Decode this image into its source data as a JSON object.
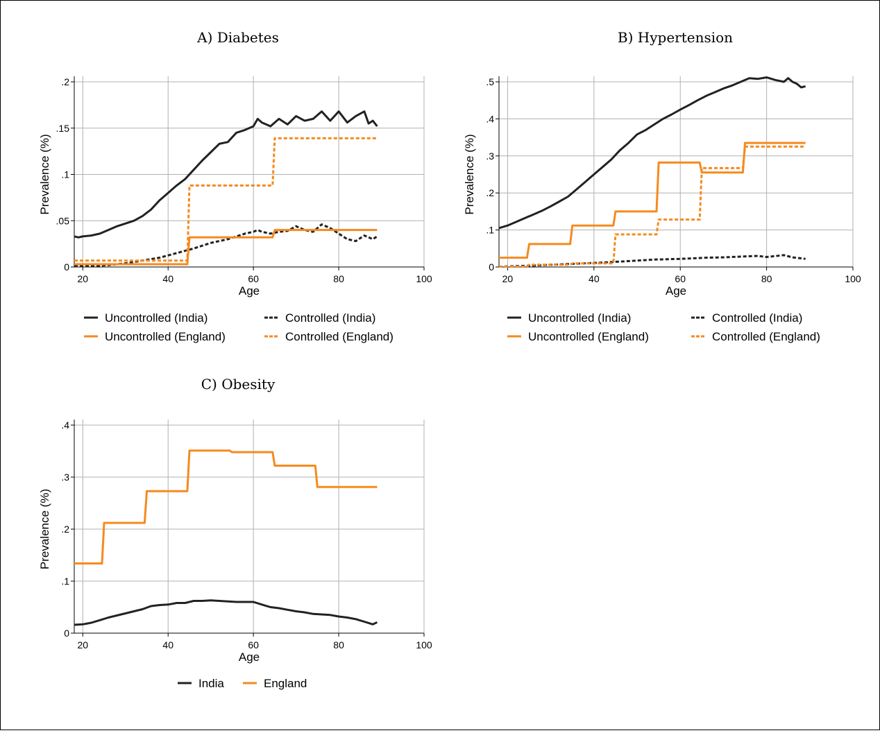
{
  "colors": {
    "india": "#222222",
    "england": "#f58a1f",
    "grid": "#b0b0b0",
    "axis": "#000000"
  },
  "chart_data": [
    {
      "type": "line",
      "title": "A) Diabetes",
      "xlabel": "Age",
      "ylabel": "Prevalence (%)",
      "xlim": [
        18,
        100
      ],
      "ylim": [
        0,
        0.2
      ],
      "xticks": [
        20,
        40,
        60,
        80,
        100
      ],
      "xtick_labels": [
        "20",
        "40",
        "60",
        "80",
        "100"
      ],
      "yticks": [
        0,
        0.05,
        0.1,
        0.15,
        0.2
      ],
      "ytick_labels": [
        "0",
        ".05",
        ".1",
        ".15",
        ".2"
      ],
      "grid": true,
      "legend_columns": 2,
      "series": [
        {
          "name": "Uncontrolled (India)",
          "color": "#222222",
          "dash": "solid",
          "x": [
            18,
            19,
            20,
            22,
            24,
            26,
            28,
            30,
            32,
            34,
            36,
            38,
            40,
            42,
            44,
            46,
            48,
            50,
            52,
            54,
            56,
            58,
            60,
            61,
            62,
            64,
            66,
            68,
            70,
            72,
            74,
            76,
            78,
            80,
            82,
            84,
            86,
            87,
            88,
            89
          ],
          "y": [
            0.033,
            0.032,
            0.033,
            0.034,
            0.036,
            0.04,
            0.044,
            0.047,
            0.05,
            0.055,
            0.062,
            0.072,
            0.08,
            0.088,
            0.095,
            0.105,
            0.115,
            0.124,
            0.133,
            0.135,
            0.145,
            0.148,
            0.152,
            0.16,
            0.156,
            0.152,
            0.16,
            0.154,
            0.163,
            0.158,
            0.16,
            0.168,
            0.158,
            0.168,
            0.156,
            0.163,
            0.168,
            0.155,
            0.158,
            0.152
          ]
        },
        {
          "name": "Controlled (India)",
          "color": "#222222",
          "dash": "dashed",
          "x": [
            18,
            22,
            26,
            30,
            34,
            38,
            42,
            46,
            50,
            54,
            58,
            60,
            61,
            62,
            64,
            66,
            68,
            70,
            72,
            74,
            76,
            78,
            80,
            82,
            84,
            86,
            88,
            89
          ],
          "y": [
            0.001,
            0.001,
            0.002,
            0.004,
            0.007,
            0.01,
            0.015,
            0.02,
            0.026,
            0.03,
            0.036,
            0.038,
            0.04,
            0.038,
            0.036,
            0.038,
            0.039,
            0.044,
            0.04,
            0.038,
            0.046,
            0.042,
            0.036,
            0.03,
            0.028,
            0.034,
            0.03,
            0.033
          ]
        },
        {
          "name": "Uncontrolled (England)",
          "color": "#f58a1f",
          "dash": "solid",
          "x": [
            18,
            44.5,
            45,
            64.5,
            65,
            89
          ],
          "y": [
            0.003,
            0.003,
            0.032,
            0.032,
            0.04,
            0.04
          ]
        },
        {
          "name": "Controlled (England)",
          "color": "#f58a1f",
          "dash": "dashed",
          "x": [
            18,
            44.5,
            45,
            64.5,
            65,
            89
          ],
          "y": [
            0.007,
            0.007,
            0.088,
            0.088,
            0.139,
            0.139
          ]
        }
      ]
    },
    {
      "type": "line",
      "title": "B) Hypertension",
      "xlabel": "Age",
      "ylabel": "Prevalence (%)",
      "xlim": [
        18,
        100
      ],
      "ylim": [
        0,
        0.5
      ],
      "xticks": [
        20,
        40,
        60,
        80,
        100
      ],
      "xtick_labels": [
        "20",
        "40",
        "60",
        "80",
        "100"
      ],
      "yticks": [
        0,
        0.1,
        0.2,
        0.3,
        0.4,
        0.5
      ],
      "ytick_labels": [
        "0",
        ".1",
        ".2",
        ".3",
        ".4",
        ".5"
      ],
      "grid": true,
      "legend_columns": 2,
      "series": [
        {
          "name": "Uncontrolled (India)",
          "color": "#222222",
          "dash": "solid",
          "x": [
            18,
            20,
            22,
            24,
            26,
            28,
            30,
            32,
            34,
            36,
            38,
            40,
            42,
            44,
            46,
            48,
            50,
            52,
            54,
            56,
            58,
            60,
            62,
            64,
            66,
            68,
            70,
            72,
            74,
            76,
            78,
            80,
            82,
            84,
            85,
            86,
            87,
            88,
            89
          ],
          "y": [
            0.105,
            0.112,
            0.122,
            0.132,
            0.142,
            0.152,
            0.164,
            0.177,
            0.19,
            0.21,
            0.23,
            0.25,
            0.27,
            0.29,
            0.315,
            0.335,
            0.358,
            0.37,
            0.385,
            0.4,
            0.412,
            0.425,
            0.437,
            0.45,
            0.462,
            0.472,
            0.482,
            0.49,
            0.5,
            0.51,
            0.508,
            0.512,
            0.505,
            0.5,
            0.51,
            0.5,
            0.495,
            0.485,
            0.488
          ]
        },
        {
          "name": "Controlled (India)",
          "color": "#222222",
          "dash": "dashed",
          "x": [
            18,
            24,
            30,
            36,
            42,
            48,
            54,
            60,
            66,
            70,
            74,
            78,
            80,
            84,
            86,
            89
          ],
          "y": [
            0.001,
            0.003,
            0.006,
            0.009,
            0.012,
            0.016,
            0.02,
            0.022,
            0.025,
            0.026,
            0.028,
            0.03,
            0.027,
            0.032,
            0.026,
            0.022
          ]
        },
        {
          "name": "Uncontrolled (England)",
          "color": "#f58a1f",
          "dash": "solid",
          "x": [
            18,
            24.5,
            25,
            34.5,
            35,
            44.5,
            45,
            54.5,
            55,
            64.5,
            65,
            74.5,
            75,
            89
          ],
          "y": [
            0.025,
            0.025,
            0.062,
            0.062,
            0.112,
            0.112,
            0.15,
            0.15,
            0.282,
            0.282,
            0.255,
            0.255,
            0.335,
            0.335
          ]
        },
        {
          "name": "Controlled (England)",
          "color": "#f58a1f",
          "dash": "dashed",
          "x": [
            18,
            24.5,
            25,
            34.5,
            35,
            44.5,
            45,
            54.5,
            55,
            64.5,
            65,
            74.5,
            75,
            89
          ],
          "y": [
            0.001,
            0.001,
            0.006,
            0.006,
            0.01,
            0.01,
            0.088,
            0.088,
            0.128,
            0.128,
            0.267,
            0.267,
            0.325,
            0.325
          ]
        }
      ]
    },
    {
      "type": "line",
      "title": "C) Obesity",
      "xlabel": "Age",
      "ylabel": "Prevalence (%)",
      "xlim": [
        18,
        100
      ],
      "ylim": [
        0,
        0.4
      ],
      "xticks": [
        20,
        40,
        60,
        80,
        100
      ],
      "xtick_labels": [
        "20",
        "40",
        "60",
        "80",
        "100"
      ],
      "yticks": [
        0,
        0.1,
        0.2,
        0.3,
        0.4
      ],
      "ytick_labels": [
        "0",
        ".1",
        ".2",
        ".3",
        ".4"
      ],
      "grid": true,
      "legend_columns": 2,
      "series": [
        {
          "name": "India",
          "color": "#222222",
          "dash": "solid",
          "x": [
            18,
            20,
            22,
            24,
            26,
            28,
            30,
            32,
            34,
            36,
            38,
            40,
            42,
            44,
            46,
            48,
            50,
            52,
            54,
            56,
            58,
            60,
            62,
            64,
            66,
            68,
            70,
            72,
            74,
            76,
            78,
            80,
            82,
            84,
            86,
            88,
            89
          ],
          "y": [
            0.016,
            0.017,
            0.02,
            0.025,
            0.03,
            0.034,
            0.038,
            0.042,
            0.046,
            0.052,
            0.054,
            0.055,
            0.058,
            0.058,
            0.062,
            0.062,
            0.063,
            0.062,
            0.061,
            0.06,
            0.06,
            0.06,
            0.055,
            0.05,
            0.048,
            0.045,
            0.042,
            0.04,
            0.037,
            0.036,
            0.035,
            0.032,
            0.03,
            0.027,
            0.022,
            0.017,
            0.021
          ]
        },
        {
          "name": "England",
          "color": "#f58a1f",
          "dash": "solid",
          "x": [
            18,
            24.5,
            25,
            34.5,
            35,
            44.5,
            45,
            54.5,
            55,
            64.5,
            65,
            74.5,
            75,
            89
          ],
          "y": [
            0.134,
            0.134,
            0.212,
            0.212,
            0.273,
            0.273,
            0.351,
            0.351,
            0.348,
            0.348,
            0.322,
            0.322,
            0.281,
            0.281
          ]
        }
      ]
    }
  ]
}
